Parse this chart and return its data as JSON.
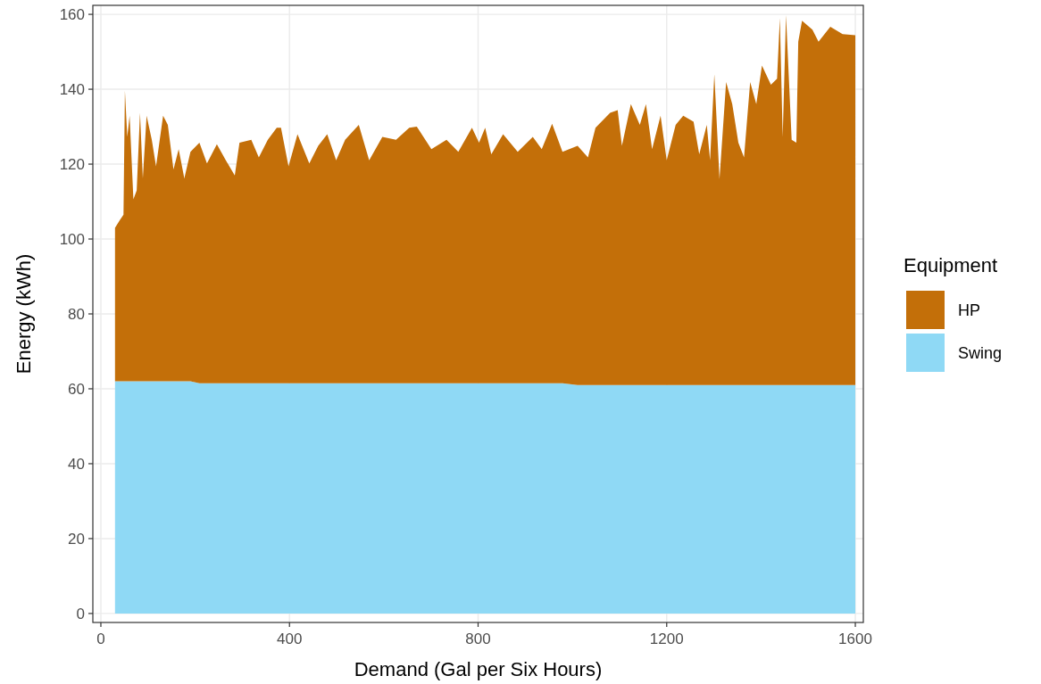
{
  "chart_data": {
    "type": "area",
    "stacked": true,
    "xlabel": "Demand (Gal per Six Hours)",
    "ylabel": "Energy (kWh)",
    "legend_title": "Equipment",
    "legend": "right",
    "grid": true,
    "x": [
      30,
      40,
      48,
      51,
      56,
      61,
      69,
      76,
      83,
      89,
      97,
      108,
      117,
      132,
      142,
      154,
      165,
      177,
      190,
      209,
      225,
      246,
      265,
      284,
      294,
      319,
      335,
      354,
      373,
      382,
      398,
      417,
      442,
      461,
      480,
      499,
      518,
      547,
      569,
      597,
      626,
      654,
      670,
      701,
      733,
      758,
      787,
      802,
      815,
      828,
      853,
      884,
      916,
      935,
      957,
      979,
      1011,
      1033,
      1049,
      1080,
      1096,
      1105,
      1124,
      1143,
      1156,
      1169,
      1187,
      1200,
      1219,
      1235,
      1257,
      1269,
      1285,
      1292,
      1301,
      1312,
      1326,
      1339,
      1352,
      1364,
      1377,
      1390,
      1402,
      1421,
      1434,
      1440,
      1446,
      1453,
      1465,
      1475,
      1479,
      1487,
      1509,
      1522,
      1547,
      1573,
      1600
    ],
    "series": [
      {
        "name": "Swing",
        "color": "#8fd9f5",
        "values": [
          62,
          62,
          62,
          62,
          62,
          62,
          62,
          62,
          62,
          62,
          62,
          62,
          62,
          62,
          62,
          62,
          62,
          62,
          62,
          61.5,
          61.5,
          61.5,
          61.5,
          61.5,
          61.5,
          61.5,
          61.5,
          61.5,
          61.5,
          61.5,
          61.5,
          61.5,
          61.5,
          61.5,
          61.5,
          61.5,
          61.5,
          61.5,
          61.5,
          61.5,
          61.5,
          61.5,
          61.5,
          61.5,
          61.5,
          61.5,
          61.5,
          61.5,
          61.5,
          61.5,
          61.5,
          61.5,
          61.5,
          61.5,
          61.5,
          61.5,
          61,
          61,
          61,
          61,
          61,
          61,
          61,
          61,
          61,
          61,
          61,
          61,
          61,
          61,
          61,
          61,
          61,
          61,
          61,
          61,
          61,
          61,
          61,
          61,
          61,
          61,
          61,
          61,
          61,
          61,
          61,
          61,
          61,
          61,
          61,
          61,
          61,
          61,
          61,
          61,
          61
        ]
      },
      {
        "name": "HP",
        "color": "#c36f09",
        "values": [
          41,
          43,
          44.5,
          77.6,
          65.3,
          70.9,
          48.6,
          51,
          71.7,
          54.2,
          70.9,
          64.5,
          57.4,
          70.9,
          68.5,
          56.6,
          62,
          54.2,
          61.3,
          64.2,
          58.7,
          63.8,
          59.5,
          55.5,
          64.2,
          65,
          60.3,
          65,
          68.2,
          68.2,
          57.9,
          66.5,
          58.7,
          63.4,
          66.5,
          59.5,
          65,
          69,
          59.5,
          65.8,
          65,
          68.2,
          68.5,
          62.5,
          65,
          61.8,
          68.2,
          64.2,
          68.2,
          61.1,
          66.5,
          61.8,
          65.8,
          62.5,
          69.3,
          61.8,
          63.9,
          60.8,
          68.7,
          72.7,
          73.4,
          63.9,
          75,
          69.5,
          75,
          63,
          71.9,
          60,
          69.5,
          71.9,
          70.3,
          61.6,
          69.5,
          60,
          83,
          55,
          80.9,
          75,
          64.7,
          60.8,
          80.9,
          75,
          85.3,
          80.2,
          81.8,
          98,
          66.3,
          98.8,
          65.5,
          64.7,
          91.7,
          97.3,
          94.9,
          91.7,
          95.7,
          93.7,
          93.4
        ]
      }
    ],
    "xlim": [
      -17,
      1617
    ],
    "xticks": [
      0,
      400,
      800,
      1200,
      1600
    ],
    "ylim": [
      -2.4,
      162.4
    ],
    "yticks": [
      0,
      20,
      40,
      60,
      80,
      100,
      120,
      140,
      160
    ]
  }
}
